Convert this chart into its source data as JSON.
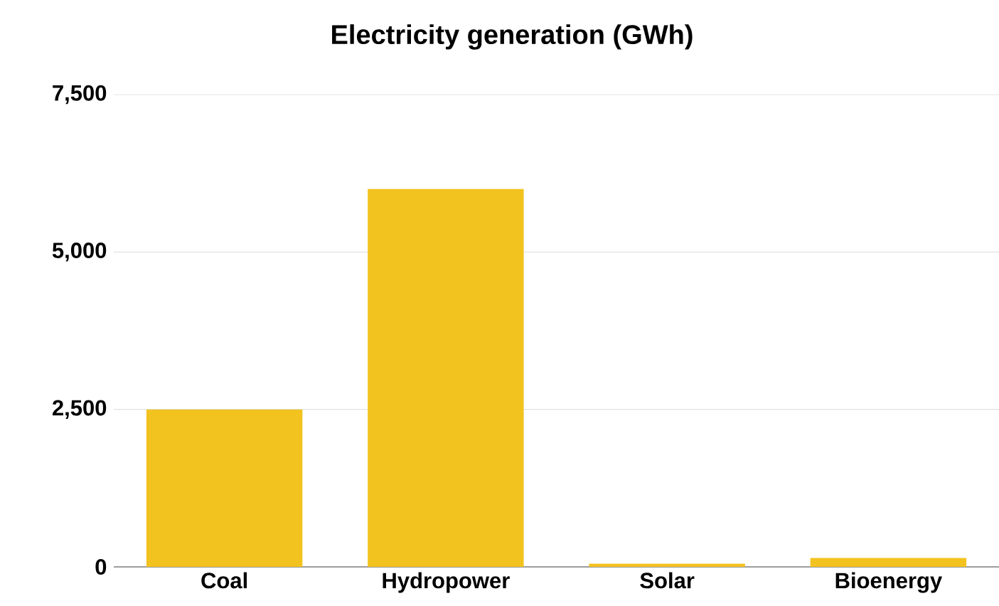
{
  "chart_data": {
    "type": "bar",
    "title": "Electricity generation (GWh)",
    "categories": [
      "Coal",
      "Hydropower",
      "Solar",
      "Bioenergy"
    ],
    "values": [
      2500,
      6000,
      50,
      140
    ],
    "color": "#f2c21f",
    "ylim": [
      0,
      7500
    ],
    "yticks": [
      0,
      {
        "value": 2500,
        "label": "2,500"
      },
      {
        "value": 5000,
        "label": "5,000"
      },
      {
        "value": 7500,
        "label": "7,500"
      }
    ],
    "grid": "y",
    "legend": false
  }
}
